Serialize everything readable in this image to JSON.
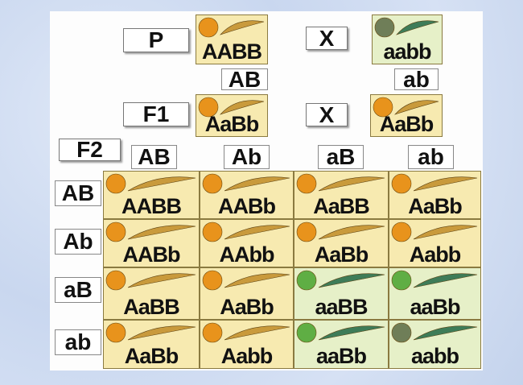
{
  "parents": {
    "label": "P",
    "cross": "X",
    "left": {
      "genotype": "AABB",
      "gamete": "AB"
    },
    "right": {
      "genotype": "aabb",
      "gamete": "ab"
    }
  },
  "f1": {
    "label": "F1",
    "cross": "X",
    "left": {
      "genotype": "AaBb"
    },
    "right": {
      "genotype": "AaBb"
    }
  },
  "f2": {
    "label": "F2",
    "columns": [
      "AB",
      "Ab",
      "aB",
      "ab"
    ],
    "rows": [
      {
        "gamete": "AB",
        "cells": [
          "AABB",
          "AABb",
          "AaBB",
          "AaBb"
        ]
      },
      {
        "gamete": "Ab",
        "cells": [
          "AABb",
          "AAbb",
          "AaBb",
          "Aabb"
        ]
      },
      {
        "gamete": "aB",
        "cells": [
          "AaBB",
          "AaBb",
          "aaBB",
          "aaBb"
        ]
      },
      {
        "gamete": "ab",
        "cells": [
          "AaBb",
          "Aabb",
          "aaBb",
          "aabb"
        ]
      }
    ]
  }
}
